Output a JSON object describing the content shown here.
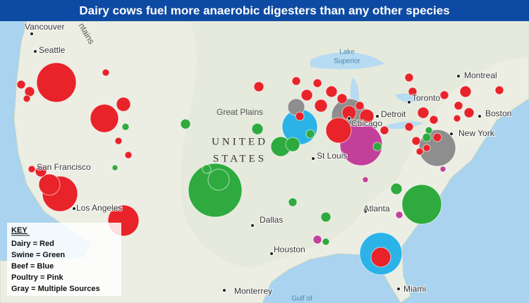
{
  "header": {
    "title": "Dairy cows fuel more anaerobic digesters than any other species"
  },
  "map": {
    "cities": [
      "Vancouver",
      "Seattle",
      "San Francisco",
      "Los Angeles",
      "Dallas",
      "Houston",
      "Monterrey",
      "Atlanta",
      "Miami",
      "St Louis",
      "Chicago",
      "Detroit",
      "Toronto",
      "Montreal",
      "Boston",
      "New York"
    ],
    "regions": [
      "Great Plains",
      "UNITED",
      "STATES"
    ],
    "water": [
      "Lake",
      "Superior",
      "Gulf of"
    ],
    "terrain": [
      "ntains"
    ]
  },
  "key": {
    "title": "KEY",
    "items": [
      "Dairy = Red",
      "Swine = Green",
      "Beef = Blue",
      "Poultry = Pink",
      "Gray = Multiple Sources"
    ]
  }
}
